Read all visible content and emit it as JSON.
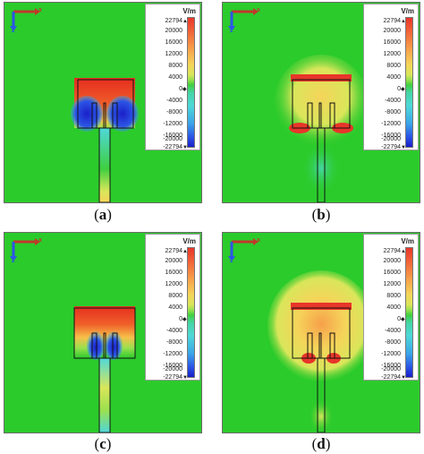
{
  "panels": [
    {
      "caption": "a",
      "id": "a"
    },
    {
      "caption": "b",
      "id": "b"
    },
    {
      "caption": "c",
      "id": "c"
    },
    {
      "caption": "d",
      "id": "d"
    }
  ],
  "legend": {
    "unit": "V/m",
    "max": "22794",
    "min": "-22794",
    "ticks": [
      "20000",
      "16000",
      "12000",
      "8000",
      "4000",
      "0",
      "-4000",
      "-8000",
      "-12000",
      "-16000",
      "-20000"
    ]
  },
  "axes": {
    "x_label": "x",
    "z_label": "z"
  },
  "colors": {
    "background_field": "#2bcb2b",
    "positive_max": "#e8352a",
    "negative_max": "#1a1fc8"
  }
}
